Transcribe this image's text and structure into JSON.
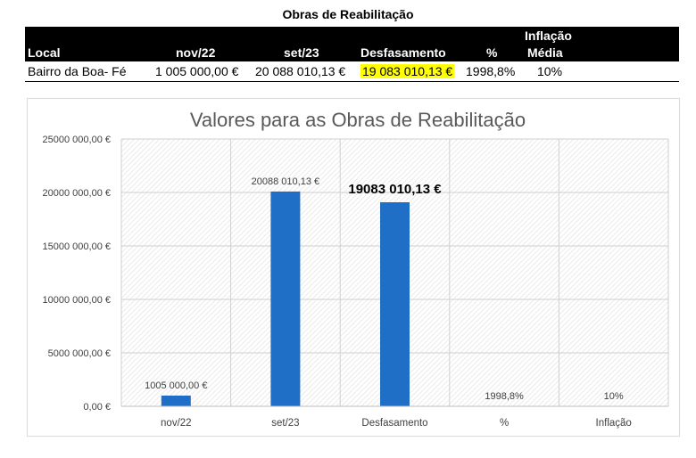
{
  "table": {
    "title": "Obras de Reabilitação",
    "headers": {
      "local": "Local",
      "nov22": "nov/22",
      "set23": "set/23",
      "desfasamento": "Desfasamento",
      "pct": "%",
      "inflacao_line1": "Inflação",
      "inflacao_line2": "Média"
    },
    "row": {
      "local": "Bairro da Boa- Fé",
      "nov22": "1 005 000,00 €",
      "set23": "20 088 010,13 €",
      "desfasamento": "19 083 010,13 €",
      "pct": "1998,8%",
      "inflacao": "10%"
    },
    "highlight_color": "#ffff00"
  },
  "chart_data": {
    "type": "bar",
    "title": "Valores para as Obras de Reabilitação",
    "categories": [
      "nov/22",
      "set/23",
      "Desfasamento",
      "%",
      "Inflação"
    ],
    "values": [
      1005000.0,
      20088010.13,
      19083010.13,
      19.988,
      0.1
    ],
    "data_labels": [
      "1005 000,00 €",
      "20088 010,13 €",
      "19083 010,13 €",
      "1998,8%",
      "10%"
    ],
    "emphasized_label_index": 2,
    "ylim": [
      0,
      25000000
    ],
    "y_ticks": [
      0,
      5000000,
      10000000,
      15000000,
      20000000,
      25000000
    ],
    "y_tick_labels": [
      "0,00 €",
      "5000 000,00 €",
      "10000 000,00 €",
      "15000 000,00 €",
      "20000 000,00 €",
      "25000 000,00 €"
    ],
    "xlabel": "",
    "ylabel": "",
    "bar_color": "#1f6fc6",
    "grid": true,
    "legend": "none"
  }
}
